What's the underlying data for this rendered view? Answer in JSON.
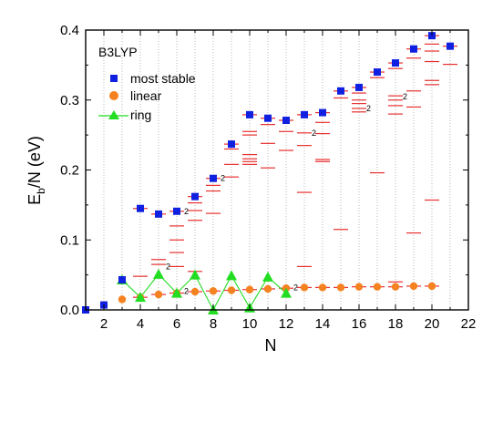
{
  "chart_data": {
    "type": "scatter",
    "title": "",
    "inset_label": "B3LYP",
    "xlabel": "N",
    "ylabel": {
      "base": "E",
      "sub": "b",
      "rest": "/N (eV)"
    },
    "xlim": [
      1,
      22
    ],
    "ylim": [
      0,
      0.4
    ],
    "xticks": [
      2,
      4,
      6,
      8,
      10,
      12,
      14,
      16,
      18,
      20,
      22
    ],
    "xtick_labels": [
      "2",
      "4",
      "6",
      "8",
      "10",
      "12",
      "14",
      "16",
      "18",
      "20",
      "22"
    ],
    "yticks": [
      0,
      0.1,
      0.2,
      0.3,
      0.4
    ],
    "ytick_labels": [
      "0.0",
      "0.1",
      "0.2",
      "0.3",
      "0.4"
    ],
    "grid": "vertical dotted at each integer N",
    "legend_position": "top-left",
    "colors": {
      "most_stable": "#1020e0",
      "linear": "#f58220",
      "ring": "#22dd22",
      "isomer": "#e83030"
    },
    "series": [
      {
        "name": "most stable",
        "marker": "square",
        "x": [
          1,
          2,
          3,
          4,
          5,
          6,
          7,
          8,
          9,
          10,
          11,
          12,
          13,
          14,
          15,
          16,
          17,
          18,
          19,
          20,
          21
        ],
        "values": [
          0.0,
          0.007,
          0.043,
          0.145,
          0.137,
          0.141,
          0.162,
          0.188,
          0.237,
          0.279,
          0.274,
          0.271,
          0.279,
          0.282,
          0.313,
          0.318,
          0.34,
          0.353,
          0.373,
          0.392,
          0.377
        ]
      },
      {
        "name": "linear",
        "marker": "circle",
        "x": [
          2,
          3,
          4,
          5,
          6,
          7,
          8,
          9,
          10,
          11,
          12,
          13,
          14,
          15,
          16,
          17,
          18,
          19,
          20
        ],
        "values": [
          0.007,
          0.015,
          0.018,
          0.022,
          0.024,
          0.026,
          0.027,
          0.028,
          0.029,
          0.03,
          0.031,
          0.032,
          0.032,
          0.032,
          0.033,
          0.033,
          0.033,
          0.034,
          0.034
        ]
      },
      {
        "name": "ring",
        "marker": "triangle",
        "x": [
          3,
          4,
          5,
          6,
          7,
          8,
          9,
          10,
          11,
          12
        ],
        "values": [
          0.043,
          0.018,
          0.051,
          0.024,
          0.05,
          0.0,
          0.049,
          0.003,
          0.047,
          0.024
        ]
      }
    ],
    "isomer_levels": [
      {
        "x": 4,
        "values": [
          0.145,
          0.048,
          0.018
        ]
      },
      {
        "x": 5,
        "values": [
          0.137,
          0.072,
          0.065,
          0.022
        ]
      },
      {
        "x": 6,
        "values": [
          0.141,
          0.12,
          0.1,
          0.082,
          0.062,
          0.024
        ]
      },
      {
        "x": 7,
        "values": [
          0.162,
          0.153,
          0.142,
          0.128,
          0.055,
          0.026
        ]
      },
      {
        "x": 8,
        "values": [
          0.188,
          0.178,
          0.17,
          0.138,
          0.027
        ]
      },
      {
        "x": 9,
        "values": [
          0.237,
          0.23,
          0.208,
          0.19,
          0.028
        ]
      },
      {
        "x": 10,
        "values": [
          0.279,
          0.255,
          0.25,
          0.222,
          0.216,
          0.212,
          0.208,
          0.029
        ]
      },
      {
        "x": 11,
        "values": [
          0.274,
          0.265,
          0.238,
          0.203,
          0.03
        ]
      },
      {
        "x": 12,
        "values": [
          0.271,
          0.255,
          0.228,
          0.031
        ]
      },
      {
        "x": 13,
        "values": [
          0.279,
          0.253,
          0.235,
          0.168,
          0.062,
          0.032
        ]
      },
      {
        "x": 14,
        "values": [
          0.282,
          0.268,
          0.252,
          0.215,
          0.212,
          0.032
        ]
      },
      {
        "x": 15,
        "values": [
          0.313,
          0.303,
          0.115,
          0.032
        ]
      },
      {
        "x": 16,
        "values": [
          0.318,
          0.31,
          0.3,
          0.295,
          0.288,
          0.283,
          0.033
        ]
      },
      {
        "x": 17,
        "values": [
          0.34,
          0.332,
          0.196,
          0.033
        ]
      },
      {
        "x": 18,
        "values": [
          0.353,
          0.345,
          0.306,
          0.3,
          0.292,
          0.28,
          0.04,
          0.033
        ]
      },
      {
        "x": 19,
        "values": [
          0.373,
          0.36,
          0.313,
          0.29,
          0.11,
          0.034
        ]
      },
      {
        "x": 20,
        "values": [
          0.392,
          0.38,
          0.37,
          0.355,
          0.328,
          0.322,
          0.157,
          0.034
        ]
      },
      {
        "x": 21,
        "values": [
          0.377,
          0.351
        ]
      }
    ],
    "degeneracy_notes": [
      {
        "x": 5,
        "y": 0.062,
        "text": "2"
      },
      {
        "x": 6,
        "y": 0.141,
        "text": "2"
      },
      {
        "x": 6,
        "y": 0.027,
        "text": "2"
      },
      {
        "x": 8,
        "y": 0.188,
        "text": "2"
      },
      {
        "x": 12,
        "y": 0.032,
        "text": "2"
      },
      {
        "x": 13,
        "y": 0.253,
        "text": "2"
      },
      {
        "x": 16,
        "y": 0.288,
        "text": "2"
      },
      {
        "x": 18,
        "y": 0.305,
        "text": "2"
      }
    ]
  }
}
